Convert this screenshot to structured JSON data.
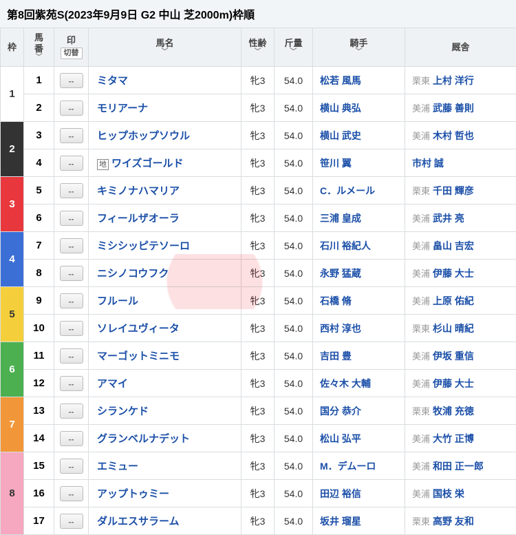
{
  "title": "第8回紫苑S(2023年9月9日 G2 中山 芝2000m)枠順",
  "headers": {
    "waku": "枠",
    "umaban": "馬\n番",
    "in": "印",
    "in_switch": "切替",
    "name": "馬名",
    "sexAge": "性齢",
    "weight": "斤量",
    "jockey": "騎手",
    "stable": "厩舎"
  },
  "sort_icon": "﹀",
  "mark_placeholder": "--",
  "waku_colors": {
    "1": {
      "bg": "#ffffff",
      "dark": false
    },
    "2": {
      "bg": "#333333",
      "dark": true
    },
    "3": {
      "bg": "#e8383d",
      "dark": true
    },
    "4": {
      "bg": "#3b6fd6",
      "dark": true
    },
    "5": {
      "bg": "#f5cf3b",
      "dark": false
    },
    "6": {
      "bg": "#4cb050",
      "dark": true
    },
    "7": {
      "bg": "#f29739",
      "dark": true
    },
    "8": {
      "bg": "#f5a8bf",
      "dark": false
    }
  },
  "rows": [
    {
      "waku": 1,
      "uma": 1,
      "name": "ミタマ",
      "sa": "牝3",
      "wt": "54.0",
      "jk": "松若 風馬",
      "loc": "栗東",
      "tr": "上村 洋行"
    },
    {
      "waku": 1,
      "uma": 2,
      "name": "モリアーナ",
      "sa": "牝3",
      "wt": "54.0",
      "jk": "横山 典弘",
      "loc": "美浦",
      "tr": "武藤 善則"
    },
    {
      "waku": 2,
      "uma": 3,
      "name": "ヒップホップソウル",
      "sa": "牝3",
      "wt": "54.0",
      "jk": "横山 武史",
      "loc": "美浦",
      "tr": "木村 哲也"
    },
    {
      "waku": 2,
      "uma": 4,
      "prefix": "地",
      "name": "ワイズゴールド",
      "sa": "牝3",
      "wt": "54.0",
      "jk": "笹川 翼",
      "loc": "",
      "tr": "市村 誠"
    },
    {
      "waku": 3,
      "uma": 5,
      "name": "キミノナハマリア",
      "sa": "牝3",
      "wt": "54.0",
      "jk": "C．ルメール",
      "loc": "栗東",
      "tr": "千田 輝彦"
    },
    {
      "waku": 3,
      "uma": 6,
      "name": "フィールザオーラ",
      "sa": "牝3",
      "wt": "54.0",
      "jk": "三浦 皇成",
      "loc": "美浦",
      "tr": "武井 亮"
    },
    {
      "waku": 4,
      "uma": 7,
      "name": "ミシシッピテソーロ",
      "sa": "牝3",
      "wt": "54.0",
      "jk": "石川 裕紀人",
      "loc": "美浦",
      "tr": "畠山 吉宏"
    },
    {
      "waku": 4,
      "uma": 8,
      "name": "ニシノコウフク",
      "sa": "牝3",
      "wt": "54.0",
      "jk": "永野 猛蔵",
      "loc": "美浦",
      "tr": "伊藤 大士"
    },
    {
      "waku": 5,
      "uma": 9,
      "name": "フルール",
      "sa": "牝3",
      "wt": "54.0",
      "jk": "石橋 脩",
      "loc": "美浦",
      "tr": "上原 佑紀"
    },
    {
      "waku": 5,
      "uma": 10,
      "name": "ソレイユヴィータ",
      "sa": "牝3",
      "wt": "54.0",
      "jk": "西村 淳也",
      "loc": "栗東",
      "tr": "杉山 晴紀"
    },
    {
      "waku": 6,
      "uma": 11,
      "name": "マーゴットミニモ",
      "sa": "牝3",
      "wt": "54.0",
      "jk": "吉田 豊",
      "loc": "美浦",
      "tr": "伊坂 重信"
    },
    {
      "waku": 6,
      "uma": 12,
      "name": "アマイ",
      "sa": "牝3",
      "wt": "54.0",
      "jk": "佐々木 大輔",
      "loc": "美浦",
      "tr": "伊藤 大士"
    },
    {
      "waku": 7,
      "uma": 13,
      "name": "シランケド",
      "sa": "牝3",
      "wt": "54.0",
      "jk": "国分 恭介",
      "loc": "栗東",
      "tr": "牧浦 充徳"
    },
    {
      "waku": 7,
      "uma": 14,
      "name": "グランベルナデット",
      "sa": "牝3",
      "wt": "54.0",
      "jk": "松山 弘平",
      "loc": "美浦",
      "tr": "大竹 正博"
    },
    {
      "waku": 8,
      "uma": 15,
      "name": "エミュー",
      "sa": "牝3",
      "wt": "54.0",
      "jk": "M．デムーロ",
      "loc": "美浦",
      "tr": "和田 正一郎"
    },
    {
      "waku": 8,
      "uma": 16,
      "name": "アップトゥミー",
      "sa": "牝3",
      "wt": "54.0",
      "jk": "田辺 裕信",
      "loc": "美浦",
      "tr": "国枝 栄"
    },
    {
      "waku": 8,
      "uma": 17,
      "name": "ダルエスサラーム",
      "sa": "牝3",
      "wt": "54.0",
      "jk": "坂井 瑠星",
      "loc": "栗東",
      "tr": "高野 友和"
    }
  ]
}
